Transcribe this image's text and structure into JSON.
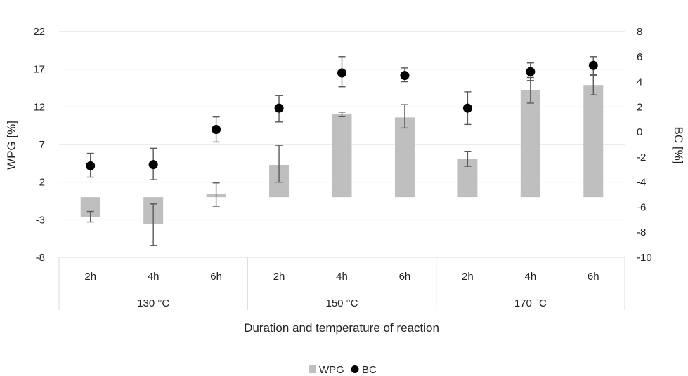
{
  "chart_data": {
    "type": "bar",
    "title": "",
    "xlabel": "Duration and temperature of reaction",
    "ylabel": "WPG [%]",
    "y2label": "BC [%]",
    "ylim": [
      -8,
      22
    ],
    "yticks": [
      -8,
      -3,
      2,
      7,
      12,
      17,
      22
    ],
    "y2lim": [
      -10,
      8
    ],
    "y2ticks": [
      -10,
      -8,
      -6,
      -4,
      -2,
      0,
      2,
      4,
      6,
      8
    ],
    "grid": true,
    "legend_position": "bottom",
    "categories": [
      "2h",
      "4h",
      "6h",
      "2h",
      "4h",
      "6h",
      "2h",
      "4h",
      "6h"
    ],
    "groups": [
      {
        "label": "130 °C",
        "span": 3
      },
      {
        "label": "150 °C",
        "span": 3
      },
      {
        "label": "170 °C",
        "span": 3
      }
    ],
    "series": [
      {
        "name": "WPG",
        "type": "bar",
        "axis": "left",
        "color": "#bfbfbf",
        "values": [
          -2.6,
          -3.6,
          0.4,
          4.3,
          11.0,
          10.6,
          5.1,
          14.2,
          14.9
        ],
        "err_low": [
          -3.3,
          -6.4,
          -1.2,
          2.0,
          10.7,
          9.2,
          4.1,
          12.5,
          13.6
        ],
        "err_high": [
          -1.9,
          -0.9,
          1.9,
          6.9,
          11.3,
          12.3,
          6.1,
          15.9,
          16.2
        ]
      },
      {
        "name": "BC",
        "type": "scatter",
        "axis": "right",
        "color": "#000000",
        "values": [
          -2.7,
          -2.6,
          0.2,
          1.9,
          4.7,
          4.5,
          1.9,
          4.8,
          5.3
        ],
        "err_low": [
          -3.6,
          -3.8,
          -0.8,
          0.8,
          3.6,
          4.0,
          0.6,
          4.1,
          4.6
        ],
        "err_high": [
          -1.7,
          -1.3,
          1.2,
          2.9,
          6.0,
          5.1,
          3.2,
          5.5,
          6.0
        ]
      }
    ]
  }
}
